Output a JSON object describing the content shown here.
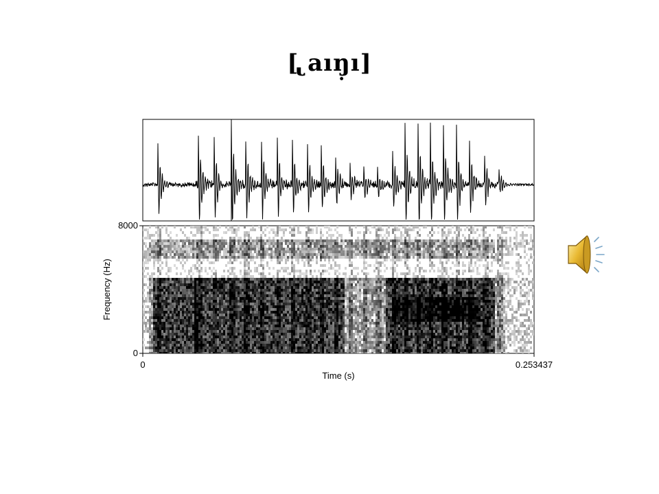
{
  "slide": {
    "title": "[ ̢aıŋ̣ı]"
  },
  "figure": {
    "y_axis_label": "Frequency (Hz)",
    "x_axis_label": "Time (s)",
    "y_max_label": "8000",
    "y_min_label": "0",
    "x_min_label": "0",
    "x_max_label": "0.253437"
  },
  "audio": {
    "icon": "speaker-icon"
  }
}
